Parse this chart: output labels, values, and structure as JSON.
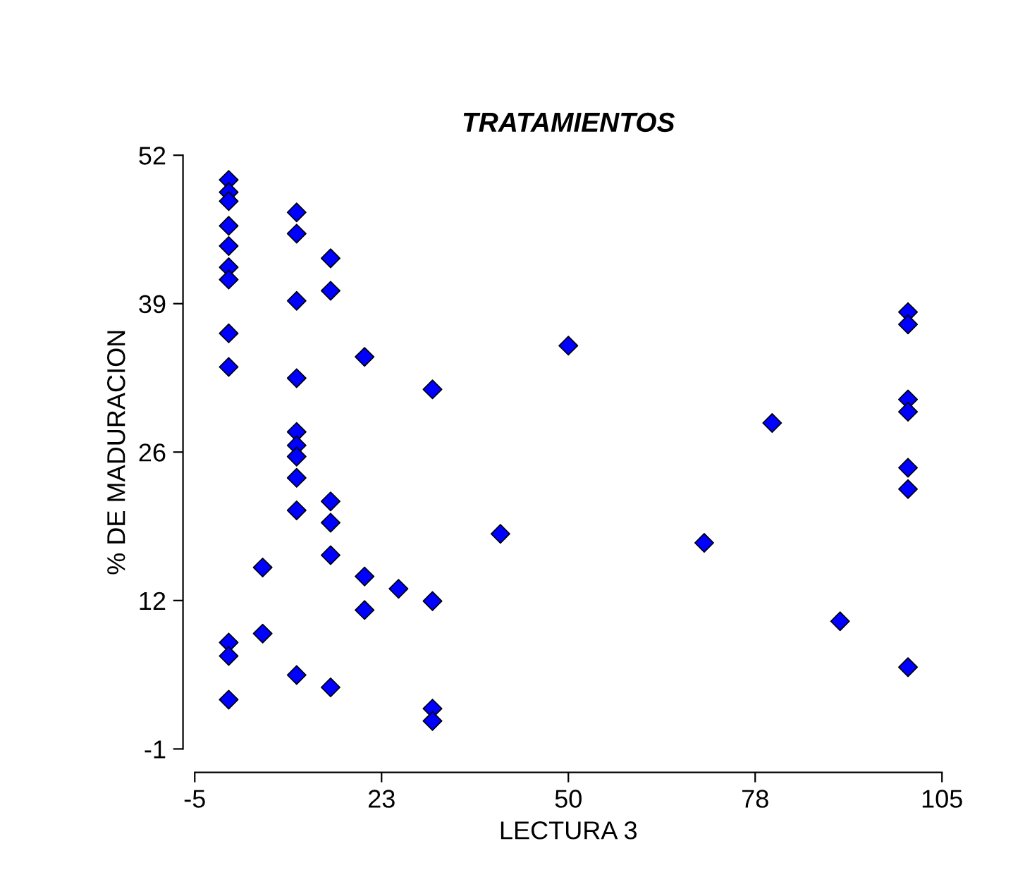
{
  "chart_data": {
    "type": "scatter",
    "title": "TRATAMIENTOS",
    "xlabel": "LECTURA 3",
    "ylabel": "% DE MADURACION",
    "x": [
      0,
      0,
      0,
      0,
      0,
      0,
      0,
      0,
      0,
      0,
      0,
      0,
      10,
      10,
      10,
      10,
      10,
      10,
      10,
      10,
      10,
      10,
      15,
      15,
      15,
      15,
      15,
      15,
      5,
      5,
      20,
      20,
      20,
      25,
      30,
      30,
      30,
      30,
      40,
      50,
      70,
      80,
      90,
      100,
      100,
      100,
      100,
      100,
      100,
      100
    ],
    "series": [
      {
        "color": "#0000ff",
        "values": [
          49.8,
          48.7,
          47.9,
          45.7,
          43.9,
          42.0,
          40.9,
          36.1,
          33.1,
          8.5,
          7.3,
          3.4,
          46.9,
          45.0,
          39.0,
          32.1,
          27.3,
          26.1,
          25.1,
          23.2,
          20.3,
          5.6,
          42.8,
          39.9,
          21.1,
          19.2,
          16.3,
          4.5,
          15.2,
          9.3,
          34.0,
          14.4,
          11.4,
          13.3,
          31.1,
          12.2,
          2.6,
          1.5,
          18.2,
          35.0,
          17.4,
          28.1,
          10.4,
          38.0,
          36.9,
          30.2,
          29.1,
          24.1,
          22.2,
          6.3
        ]
      }
    ],
    "xlim": [
      -5,
      105
    ],
    "xticks": [
      -5,
      {
        "value": 22.5,
        "label": "23"
      },
      50,
      {
        "value": 77.5,
        "label": "78"
      },
      105
    ],
    "ylim": [
      -1,
      52
    ],
    "yticks": [
      -1,
      {
        "value": 12.25,
        "label": "12"
      },
      {
        "value": 25.5,
        "label": "26"
      },
      {
        "value": 38.75,
        "label": "39"
      },
      52
    ],
    "marker": "diamond",
    "grid": false,
    "legend": false
  }
}
